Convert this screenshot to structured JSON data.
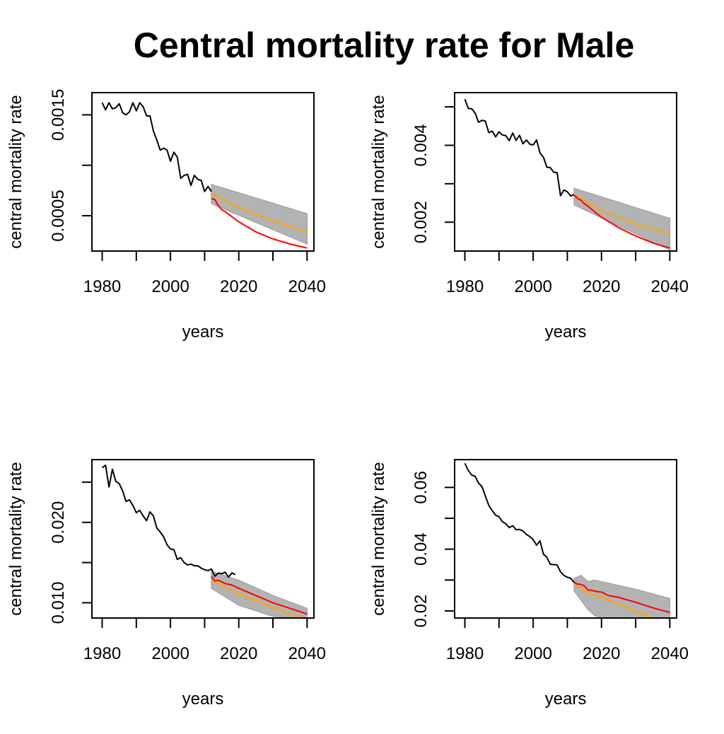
{
  "figure": {
    "title": "Central mortality rate for Male"
  },
  "colors": {
    "observed": "#000000",
    "band": "#b3b3b3",
    "band_edge": "#a6a6a6",
    "median": "#ffa500",
    "forecast": "#ff0000"
  },
  "chart_data": [
    {
      "type": "line",
      "xlabel": "years",
      "ylabel": "central mortality rate",
      "xlim": [
        1977,
        2042
      ],
      "xticks": [
        1980,
        2000,
        2020,
        2040
      ],
      "xtick_labels": [
        "1980",
        "2000",
        "2020",
        "2040"
      ],
      "ylim": [
        0.00015,
        0.00172
      ],
      "yticks": [
        0.0005,
        0.001,
        0.0015
      ],
      "ytick_labels": [
        "0.0005",
        "",
        "0.0015"
      ],
      "grid": false,
      "observed": {
        "x": [
          1980,
          1981,
          1982,
          1983,
          1984,
          1985,
          1986,
          1987,
          1988,
          1989,
          1990,
          1991,
          1992,
          1993,
          1994,
          1995,
          1996,
          1997,
          1998,
          1999,
          2000,
          2001,
          2002,
          2003,
          2004,
          2005,
          2006,
          2007,
          2008,
          2009,
          2010,
          2011,
          2012
        ],
        "y": [
          0.00162,
          0.00155,
          0.00162,
          0.00156,
          0.00157,
          0.00161,
          0.00152,
          0.0015,
          0.00153,
          0.00162,
          0.00154,
          0.00162,
          0.00158,
          0.00149,
          0.00149,
          0.00134,
          0.00125,
          0.00115,
          0.00117,
          0.00115,
          0.00104,
          0.00113,
          0.00108,
          0.00087,
          0.0009,
          0.00091,
          0.0008,
          0.0009,
          0.00086,
          0.00085,
          0.00074,
          0.00079,
          0.00074
        ]
      },
      "band": {
        "x": [
          2012,
          2040
        ],
        "lower": [
          0.00062,
          0.00022
        ],
        "upper": [
          0.00081,
          0.00052
        ]
      },
      "median": {
        "x": [
          2012,
          2020,
          2030,
          2040
        ],
        "y": [
          0.00072,
          0.00058,
          0.00045,
          0.00034
        ]
      },
      "forecast": {
        "x": [
          2012,
          2013,
          2014,
          2015,
          2016,
          2018,
          2020,
          2025,
          2030,
          2035,
          2040
        ],
        "y": [
          0.00067,
          0.00066,
          0.0006,
          0.00056,
          0.00054,
          0.00049,
          0.00044,
          0.00034,
          0.00027,
          0.00022,
          0.00018
        ]
      }
    },
    {
      "type": "line",
      "xlabel": "years",
      "ylabel": "central mortality rate",
      "xlim": [
        1977,
        2042
      ],
      "xticks": [
        1980,
        2000,
        2020,
        2040
      ],
      "xtick_labels": [
        "1980",
        "2000",
        "2020",
        "2040"
      ],
      "ylim": [
        0.00125,
        0.00537
      ],
      "yticks": [
        0.002,
        0.003,
        0.004,
        0.005
      ],
      "ytick_labels": [
        "0.002",
        "",
        "0.004",
        ""
      ],
      "grid": false,
      "observed": {
        "x": [
          1980,
          1981,
          1982,
          1983,
          1984,
          1985,
          1986,
          1987,
          1988,
          1989,
          1990,
          1991,
          1992,
          1993,
          1994,
          1995,
          1996,
          1997,
          1998,
          1999,
          2000,
          2001,
          2002,
          2003,
          2004,
          2005,
          2006,
          2007,
          2008,
          2009,
          2010,
          2011,
          2012
        ],
        "y": [
          0.0052,
          0.00496,
          0.00495,
          0.00484,
          0.0046,
          0.00465,
          0.00463,
          0.00433,
          0.00437,
          0.00422,
          0.00435,
          0.00427,
          0.00425,
          0.00412,
          0.00432,
          0.00413,
          0.00426,
          0.00404,
          0.00414,
          0.00403,
          0.00401,
          0.00414,
          0.0038,
          0.00369,
          0.00343,
          0.00342,
          0.0033,
          0.00329,
          0.00269,
          0.00284,
          0.00279,
          0.00268,
          0.00272
        ]
      },
      "band": {
        "x": [
          2012,
          2040
        ],
        "lower": [
          0.00245,
          0.00128
        ],
        "upper": [
          0.00288,
          0.0021
        ]
      },
      "median": {
        "x": [
          2012,
          2020,
          2030,
          2040
        ],
        "y": [
          0.00272,
          0.00229,
          0.00196,
          0.00169
        ]
      },
      "forecast": {
        "x": [
          2012,
          2013,
          2014,
          2015,
          2016,
          2018,
          2020,
          2025,
          2030,
          2035,
          2040
        ],
        "y": [
          0.0027,
          0.00262,
          0.00257,
          0.00248,
          0.00242,
          0.00227,
          0.00213,
          0.00186,
          0.00164,
          0.00146,
          0.00133
        ]
      }
    },
    {
      "type": "line",
      "xlabel": "years",
      "ylabel": "central mortality rate",
      "xlim": [
        1977,
        2042
      ],
      "xticks": [
        1980,
        2000,
        2020,
        2040
      ],
      "xtick_labels": [
        "1980",
        "2000",
        "2020",
        "2040"
      ],
      "ylim": [
        0.0081,
        0.0278
      ],
      "yticks": [
        0.01,
        0.015,
        0.02,
        0.025
      ],
      "ytick_labels": [
        "0.010",
        "",
        "0.020",
        ""
      ],
      "grid": false,
      "observed": {
        "x": [
          1980,
          1981,
          1982,
          1983,
          1984,
          1985,
          1986,
          1987,
          1988,
          1989,
          1990,
          1991,
          1992,
          1993,
          1994,
          1995,
          1996,
          1997,
          1998,
          1999,
          2000,
          2001,
          2002,
          2003,
          2004,
          2005,
          2006,
          2007,
          2008,
          2009,
          2010,
          2011,
          2012,
          2013,
          2014,
          2015,
          2016,
          2017,
          2018,
          2019
        ],
        "y": [
          0.0268,
          0.0271,
          0.0244,
          0.0266,
          0.0251,
          0.0248,
          0.0239,
          0.0226,
          0.0228,
          0.0221,
          0.0212,
          0.0215,
          0.0208,
          0.0202,
          0.0213,
          0.0208,
          0.0193,
          0.0188,
          0.0182,
          0.0172,
          0.0167,
          0.0166,
          0.0154,
          0.0156,
          0.015,
          0.0147,
          0.0148,
          0.0146,
          0.0146,
          0.0143,
          0.0141,
          0.014,
          0.0142,
          0.0133,
          0.0137,
          0.0136,
          0.0138,
          0.0132,
          0.0137,
          0.0135
        ]
      },
      "band": {
        "x": [
          2012,
          2020,
          2030,
          2040
        ],
        "lower": [
          0.0118,
          0.0097,
          0.0083,
          0.0081
        ],
        "upper": [
          0.0139,
          0.0128,
          0.0109,
          0.0093
        ]
      },
      "median": {
        "x": [
          2012,
          2020,
          2030,
          2040
        ],
        "y": [
          0.0128,
          0.0111,
          0.0094,
          0.0079
        ]
      },
      "forecast": {
        "x": [
          2012,
          2013,
          2014,
          2015,
          2016,
          2018,
          2020,
          2025,
          2030,
          2035,
          2040
        ],
        "y": [
          0.0133,
          0.0127,
          0.0128,
          0.0126,
          0.0124,
          0.0122,
          0.0118,
          0.0109,
          0.01,
          0.0093,
          0.0086
        ]
      }
    },
    {
      "type": "line",
      "xlabel": "years",
      "ylabel": "central mortality rate",
      "xlim": [
        1977,
        2042
      ],
      "xticks": [
        1980,
        2000,
        2020,
        2040
      ],
      "xtick_labels": [
        "1980",
        "2000",
        "2020",
        "2040"
      ],
      "ylim": [
        0.0177,
        0.069
      ],
      "yticks": [
        0.02,
        0.03,
        0.04,
        0.05,
        0.06
      ],
      "ytick_labels": [
        "0.02",
        "",
        "0.04",
        "",
        "0.06"
      ],
      "grid": false,
      "observed": {
        "x": [
          1980,
          1981,
          1982,
          1983,
          1984,
          1985,
          1986,
          1987,
          1988,
          1989,
          1990,
          1991,
          1992,
          1993,
          1994,
          1995,
          1996,
          1997,
          1998,
          1999,
          2000,
          2001,
          2002,
          2003,
          2004,
          2005,
          2006,
          2007,
          2008,
          2009,
          2010,
          2011,
          2012
        ],
        "y": [
          0.0678,
          0.0655,
          0.064,
          0.0636,
          0.0614,
          0.0603,
          0.0572,
          0.0542,
          0.0525,
          0.051,
          0.0505,
          0.0489,
          0.0482,
          0.047,
          0.0476,
          0.0463,
          0.0464,
          0.0459,
          0.0448,
          0.0441,
          0.0431,
          0.0413,
          0.0427,
          0.0384,
          0.0374,
          0.0351,
          0.035,
          0.0349,
          0.0327,
          0.0315,
          0.0309,
          0.0306,
          0.0292
        ]
      },
      "band": {
        "x": [
          2012,
          2014,
          2016,
          2018,
          2020,
          2030,
          2040
        ],
        "lower": [
          0.0265,
          0.0235,
          0.0205,
          0.0185,
          0.0177,
          0.0177,
          0.0177
        ],
        "upper": [
          0.0305,
          0.0315,
          0.0295,
          0.03,
          0.0295,
          0.027,
          0.024
        ]
      },
      "median": {
        "x": [
          2012,
          2015,
          2018,
          2020,
          2025,
          2030,
          2035
        ],
        "y": [
          0.0289,
          0.0265,
          0.025,
          0.0245,
          0.0222,
          0.0198,
          0.0177
        ]
      },
      "forecast": {
        "x": [
          2012,
          2013,
          2014,
          2015,
          2016,
          2017,
          2018,
          2020,
          2022,
          2025,
          2030,
          2035,
          2040
        ],
        "y": [
          0.0292,
          0.0287,
          0.0286,
          0.0281,
          0.0268,
          0.0267,
          0.0264,
          0.0261,
          0.025,
          0.0244,
          0.0228,
          0.021,
          0.0195
        ]
      }
    }
  ]
}
